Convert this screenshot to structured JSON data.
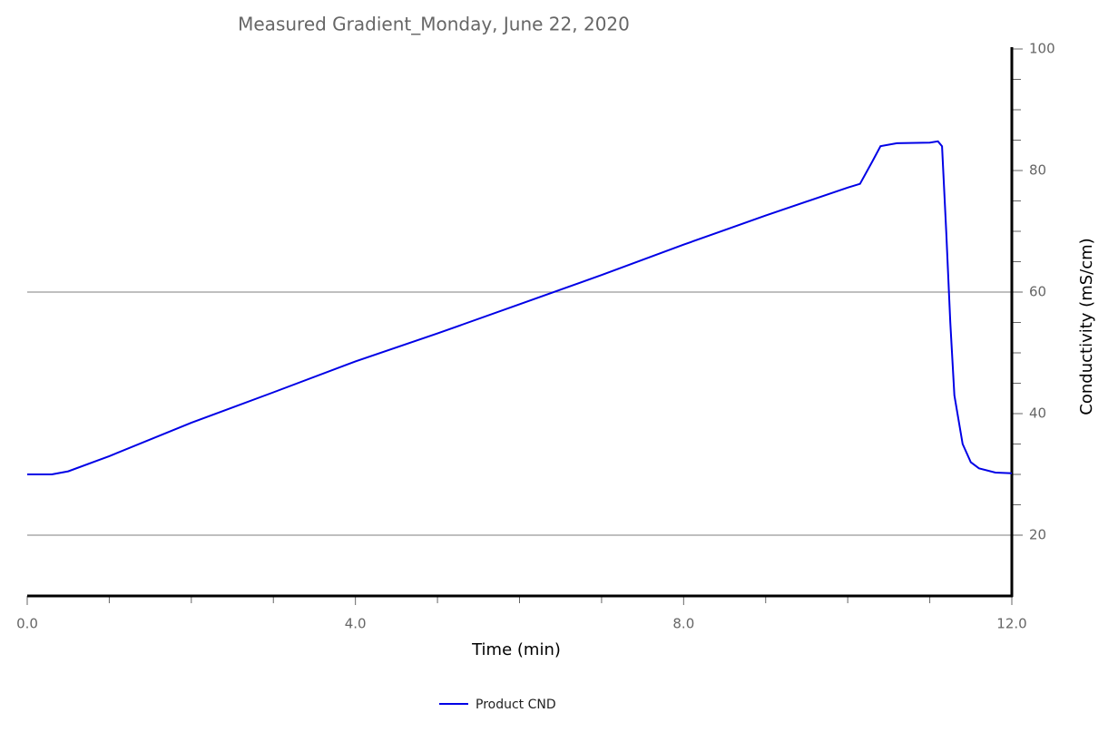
{
  "chart_data": {
    "type": "line",
    "title": "Measured Gradient_Monday, June 22, 2020",
    "x_label": "Time (min)",
    "y_label": "Conductivity (mS/cm)",
    "x": [
      0,
      0.3,
      0.5,
      1,
      2,
      3,
      4,
      5,
      6,
      7,
      8,
      9,
      10,
      10.15,
      10.3,
      10.4,
      10.6,
      11,
      11.1,
      11.15,
      11.2,
      11.25,
      11.3,
      11.4,
      11.5,
      11.6,
      11.8,
      12
    ],
    "series": [
      {
        "name": "Product CND",
        "color": "#0000e6",
        "values": [
          30,
          30,
          30.5,
          33,
          38.5,
          43.5,
          48.6,
          53.2,
          58,
          62.8,
          67.8,
          72.6,
          77.2,
          77.8,
          81.5,
          84,
          84.5,
          84.6,
          84.8,
          84,
          70,
          55,
          43,
          35,
          32,
          31,
          30.3,
          30.2
        ]
      }
    ],
    "xlim": [
      0,
      12
    ],
    "ylim": [
      10,
      100
    ],
    "xticks": [
      {
        "value": 0,
        "label": "0.0"
      },
      {
        "value": 4,
        "label": "4.0"
      },
      {
        "value": 8,
        "label": "8.0"
      },
      {
        "value": 12,
        "label": "12.0"
      }
    ],
    "yticks": [
      20,
      40,
      60,
      80,
      100
    ],
    "ygrid": [
      20,
      60
    ],
    "y_axis_side": "right",
    "legend": "bottom"
  }
}
